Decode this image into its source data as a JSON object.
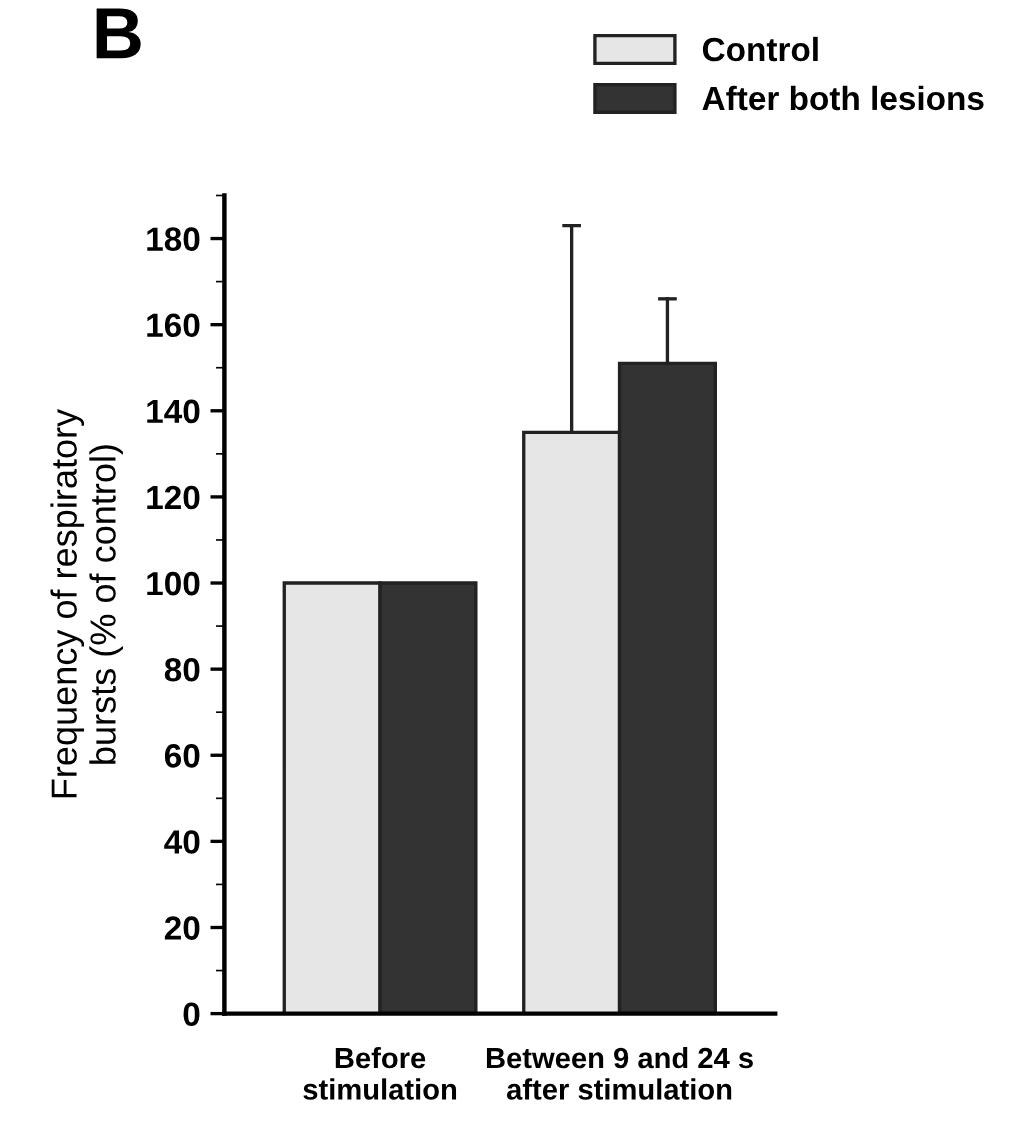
{
  "chart_data": {
    "type": "bar",
    "ylabel": "Frequency of respiratory\nbursts (% of control)",
    "categories": [
      "Before\nstimulation",
      "Between 9 and 24 s\nafter stimulation"
    ],
    "series": [
      {
        "name": "Control",
        "color": "#e6e6e6",
        "values": [
          100,
          135
        ],
        "errors": [
          null,
          [
            135,
            183
          ]
        ]
      },
      {
        "name": "After both lesions",
        "color": "#333333",
        "values": [
          100,
          151
        ],
        "errors": [
          null,
          [
            151,
            166
          ]
        ]
      }
    ],
    "ylim": [
      0,
      190
    ],
    "yticks": [
      0,
      20,
      40,
      60,
      80,
      100,
      120,
      140,
      160,
      180
    ],
    "grid": false,
    "legend": "top right",
    "annotations": [
      "B"
    ]
  }
}
